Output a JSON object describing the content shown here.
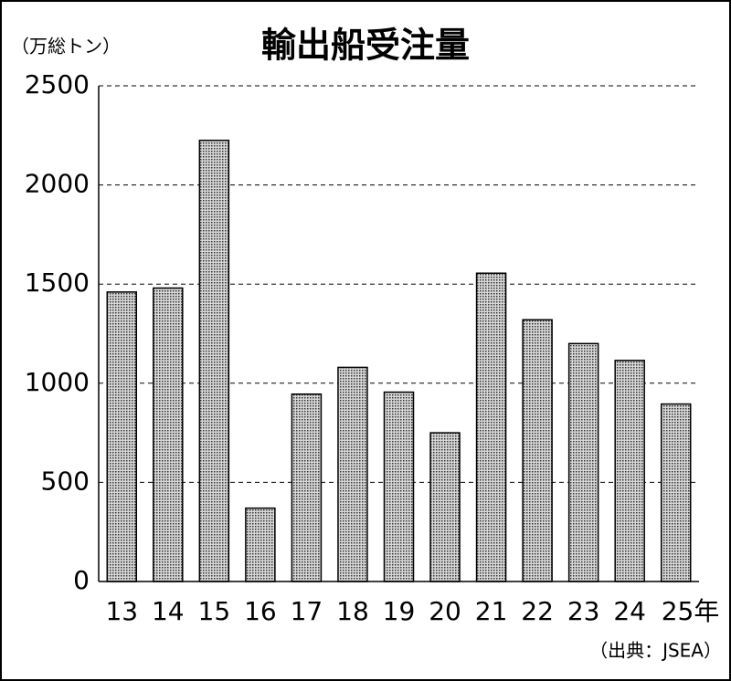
{
  "chart_data": {
    "type": "bar",
    "title": "輸出船受注量",
    "y_label": "（万総トン）",
    "source": "（出典：JSEA）",
    "categories": [
      "13",
      "14",
      "15",
      "16",
      "17",
      "18",
      "19",
      "20",
      "21",
      "22",
      "23",
      "24",
      "25年"
    ],
    "values": [
      1460,
      1480,
      2225,
      370,
      945,
      1080,
      955,
      750,
      1555,
      1320,
      1200,
      1115,
      895
    ],
    "color": "#999999",
    "ylim": [
      0,
      2500
    ],
    "yticks": [
      0,
      500,
      1000,
      1500,
      2000,
      2500
    ],
    "grid": true
  }
}
